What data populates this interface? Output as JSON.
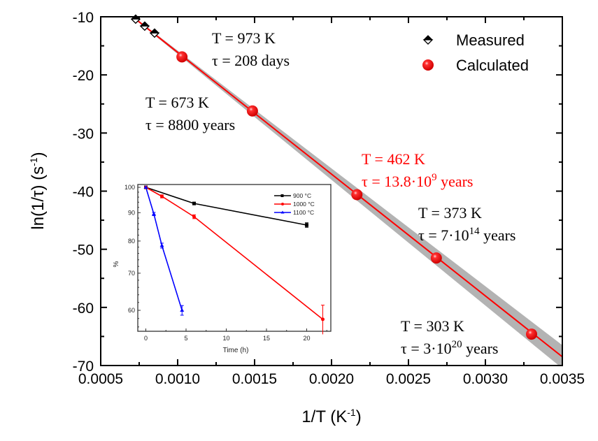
{
  "chart_data": {
    "type": "scatter",
    "title": "",
    "xlabel": "1/T (K",
    "xlabel_sup": "-1",
    "xlabel_end": ")",
    "ylabel": "ln(1/τ) (s",
    "ylabel_sup": "-1",
    "ylabel_end": ")",
    "xlim": [
      0.0005,
      0.0035
    ],
    "ylim": [
      -70,
      -10
    ],
    "xticks": [
      0.0005,
      0.001,
      0.0015,
      0.002,
      0.0025,
      0.003,
      0.0035
    ],
    "xtick_labels": [
      "0.0005",
      "0.0010",
      "0.0015",
      "0.0020",
      "0.0025",
      "0.0030",
      "0.0035"
    ],
    "yticks": [
      -70,
      -60,
      -50,
      -40,
      -30,
      -20,
      -10
    ],
    "ytick_labels": [
      "-70",
      "-60",
      "-50",
      "-40",
      "-30",
      "-20",
      "-10"
    ],
    "grid": false,
    "legend_position": "top-right",
    "series": [
      {
        "name": "Measured",
        "marker": "half-filled-diamond",
        "color": "#000000",
        "x": [
          0.000727,
          0.000786,
          0.00085
        ],
        "y": [
          -10.4,
          -11.6,
          -12.8
        ]
      },
      {
        "name": "Calculated",
        "marker": "sphere",
        "color": "#ff0000",
        "x": [
          0.001028,
          0.001486,
          0.002165,
          0.002681,
          0.0033
        ],
        "y": [
          -16.9,
          -26.2,
          -40.6,
          -51.5,
          -64.6
        ]
      }
    ],
    "fit_line": {
      "color": "#ff0000",
      "band_color": "#b3b3b3",
      "x": [
        0.000727,
        0.0035
      ],
      "y": [
        -10.4,
        -68.5
      ],
      "band_halfwidth_at_end": 2.0
    },
    "annotations": [
      {
        "line1": "T = 973 K",
        "line2_pre": "τ = 208 days",
        "sup": "",
        "line2_post": "",
        "color": "#000000"
      },
      {
        "line1": "T = 673 K",
        "line2_pre": "τ = 8800 years",
        "sup": "",
        "line2_post": "",
        "color": "#000000"
      },
      {
        "line1": "T = 462 K",
        "line2_pre": "τ = 13.8·10",
        "sup": "9",
        "line2_post": " years",
        "color": "#ff0000"
      },
      {
        "line1": "T = 373 K",
        "line2_pre": "τ = 7·10",
        "sup": "14",
        "line2_post": " years",
        "color": "#000000"
      },
      {
        "line1": "T = 303 K",
        "line2_pre": "τ = 3·10",
        "sup": "20",
        "line2_post": " years",
        "color": "#000000"
      }
    ],
    "inset": {
      "type": "line",
      "xlabel": "Time (h)",
      "ylabel": "%",
      "xlim": [
        -1,
        23
      ],
      "ylim": [
        55,
        100
      ],
      "yscale": "log",
      "xticks": [
        0,
        5,
        10,
        15,
        20
      ],
      "xtick_labels": [
        "0",
        "5",
        "10",
        "15",
        "20"
      ],
      "yticks": [
        60,
        70,
        80,
        90,
        100
      ],
      "ytick_labels": [
        "60",
        "70",
        "80",
        "90",
        "100"
      ],
      "legend_position": "top-right",
      "series": [
        {
          "name": "900 °C",
          "color": "#000000",
          "marker": "square",
          "x": [
            0,
            6,
            20
          ],
          "y": [
            100,
            93.5,
            85.5
          ],
          "err": [
            0,
            0.5,
            0.8
          ]
        },
        {
          "name": "1000 °C",
          "color": "#ff0000",
          "marker": "circle",
          "x": [
            0,
            2,
            6,
            22
          ],
          "y": [
            100,
            96.3,
            88.5,
            57.8
          ],
          "err": [
            0,
            0.6,
            0.7,
            3.5
          ]
        },
        {
          "name": "1100 °C",
          "color": "#0000ff",
          "marker": "triangle",
          "x": [
            0,
            1,
            2,
            4.5
          ],
          "y": [
            100,
            89.5,
            78.5,
            60.0
          ],
          "err": [
            0,
            0.6,
            0.8,
            1.2
          ]
        }
      ]
    }
  }
}
